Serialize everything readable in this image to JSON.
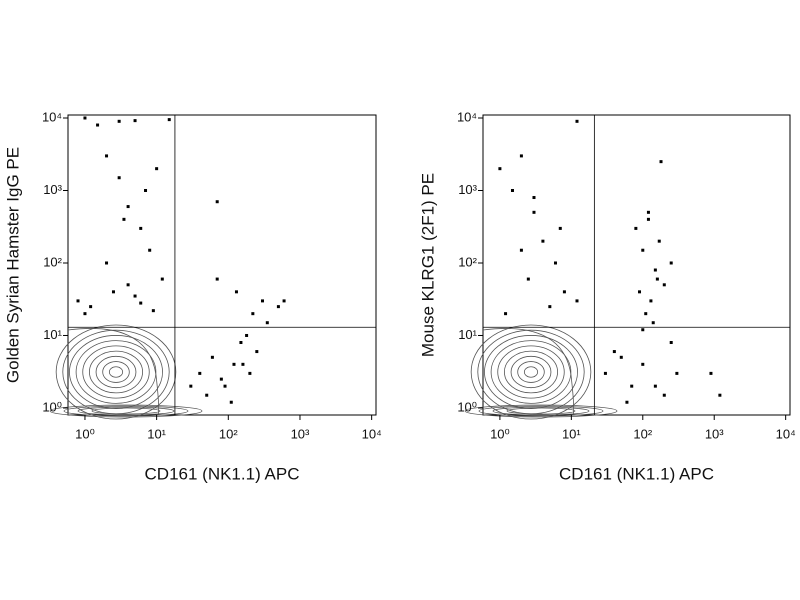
{
  "chart_data": [
    {
      "type": "scatter",
      "xlabel": "CD161 (NK1.1) APC",
      "ylabel": "Golden Syrian Hamster IgG PE",
      "log": true,
      "color": "#000000",
      "xlim": [
        0.58,
        11500
      ],
      "ylim": [
        0.8,
        11000
      ],
      "xticks": [
        {
          "value": 1,
          "label": "10⁰"
        },
        {
          "value": 10,
          "label": "10¹"
        },
        {
          "value": 100,
          "label": "10²"
        },
        {
          "value": 1000,
          "label": "10³"
        },
        {
          "value": 10000,
          "label": "10⁴"
        }
      ],
      "yticks": [
        {
          "value": 1,
          "label": "10⁰"
        },
        {
          "value": 10,
          "label": "10¹"
        },
        {
          "value": 100,
          "label": "10²"
        },
        {
          "value": 1000,
          "label": "10³"
        },
        {
          "value": 10000,
          "label": "10⁴"
        }
      ],
      "gate": {
        "x": 18,
        "y": 13
      },
      "x": [
        1,
        1.5,
        2,
        3,
        4,
        6,
        8,
        12,
        2.5,
        5,
        0.8,
        1.2,
        3.5,
        7,
        10,
        2,
        4,
        1,
        6,
        9,
        40,
        60,
        90,
        120,
        150,
        200,
        250,
        300,
        50,
        80,
        110,
        180,
        220,
        350,
        70,
        130,
        160,
        30,
        500,
        600,
        70,
        15,
        3,
        5
      ],
      "y": [
        10000,
        8000,
        3000,
        1500,
        600,
        300,
        150,
        60,
        40,
        35,
        30,
        25,
        400,
        1000,
        2000,
        100,
        50,
        20,
        28,
        22,
        3,
        5,
        2,
        4,
        8,
        3,
        6,
        30,
        1.5,
        2.5,
        1.2,
        10,
        20,
        15,
        60,
        40,
        4,
        2,
        25,
        30,
        700,
        9500,
        9000,
        9200
      ]
    },
    {
      "type": "scatter",
      "xlabel": "CD161 (NK1.1) APC",
      "ylabel": "Mouse KLRG1 (2F1) PE",
      "log": true,
      "color": "#000000",
      "xlim": [
        0.58,
        11500
      ],
      "ylim": [
        0.8,
        11000
      ],
      "xticks": [
        {
          "value": 1,
          "label": "10⁰"
        },
        {
          "value": 10,
          "label": "10¹"
        },
        {
          "value": 100,
          "label": "10²"
        },
        {
          "value": 1000,
          "label": "10³"
        },
        {
          "value": 10000,
          "label": "10⁴"
        }
      ],
      "yticks": [
        {
          "value": 1,
          "label": "10⁰"
        },
        {
          "value": 10,
          "label": "10¹"
        },
        {
          "value": 100,
          "label": "10²"
        },
        {
          "value": 1000,
          "label": "10³"
        },
        {
          "value": 10000,
          "label": "10⁴"
        }
      ],
      "gate": {
        "x": 21,
        "y": 13
      },
      "x": [
        1,
        1.5,
        2,
        3,
        4,
        6,
        8,
        12,
        2.5,
        5,
        1.2,
        3,
        7,
        2,
        80,
        100,
        120,
        150,
        200,
        90,
        110,
        130,
        170,
        250,
        140,
        100,
        160,
        120,
        30,
        50,
        70,
        100,
        150,
        200,
        300,
        40,
        60,
        250,
        900,
        1200,
        180,
        12
      ],
      "y": [
        2000,
        1000,
        3000,
        500,
        200,
        100,
        40,
        30,
        60,
        25,
        20,
        800,
        300,
        150,
        300,
        150,
        500,
        80,
        50,
        40,
        20,
        30,
        200,
        100,
        15,
        12,
        60,
        400,
        3,
        5,
        2,
        4,
        2,
        1.5,
        3,
        6,
        1.2,
        8,
        3,
        1.5,
        2500,
        9000
      ]
    }
  ]
}
